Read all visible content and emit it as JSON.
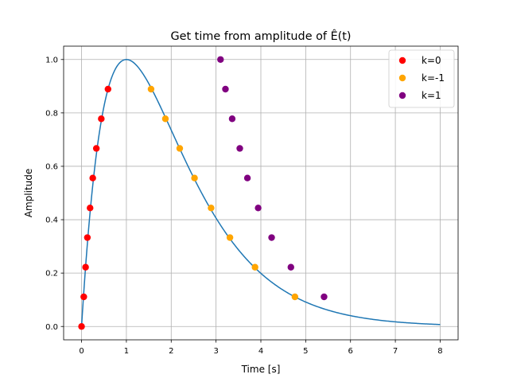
{
  "chart_data": {
    "type": "scatter",
    "title": "Get time from amplitude of Ê(t)",
    "xlabel": "Time [s]",
    "ylabel": "Amplitude",
    "xlim": [
      -0.4,
      8.4
    ],
    "ylim": [
      -0.05,
      1.05
    ],
    "x_ticks": [
      0,
      1,
      2,
      3,
      4,
      5,
      6,
      7,
      8
    ],
    "y_ticks": [
      0.0,
      0.2,
      0.4,
      0.6,
      0.8,
      1.0
    ],
    "x_tick_labels": [
      "0",
      "1",
      "2",
      "3",
      "4",
      "5",
      "6",
      "7",
      "8"
    ],
    "y_tick_labels": [
      "0.0",
      "0.2",
      "0.4",
      "0.6",
      "0.8",
      "1.0"
    ],
    "grid": true,
    "legend_position": "top-right",
    "curve": {
      "type": "line",
      "color": "#1f77b4",
      "formula": "A(t) = t * e^(1 - t)",
      "x_range": [
        0,
        8
      ]
    },
    "series": [
      {
        "name": "k=0",
        "color": "#ff0000",
        "x": [
          0.0,
          0.05,
          0.09,
          0.13,
          0.19,
          0.25,
          0.33,
          0.44,
          0.59
        ],
        "y": [
          0.0,
          0.111,
          0.222,
          0.333,
          0.444,
          0.556,
          0.667,
          0.778,
          0.889
        ]
      },
      {
        "name": "k=-1",
        "color": "#ffa500",
        "x": [
          4.76,
          3.87,
          3.31,
          2.89,
          2.52,
          2.19,
          1.87,
          1.55
        ],
        "y": [
          0.111,
          0.222,
          0.333,
          0.444,
          0.556,
          0.667,
          0.778,
          0.889
        ]
      },
      {
        "name": "k=1",
        "color": "#800080",
        "x": [
          5.41,
          4.67,
          4.24,
          3.94,
          3.7,
          3.53,
          3.36,
          3.21,
          3.1
        ],
        "y": [
          0.111,
          0.222,
          0.333,
          0.444,
          0.556,
          0.667,
          0.778,
          0.889,
          1.0
        ]
      }
    ]
  }
}
